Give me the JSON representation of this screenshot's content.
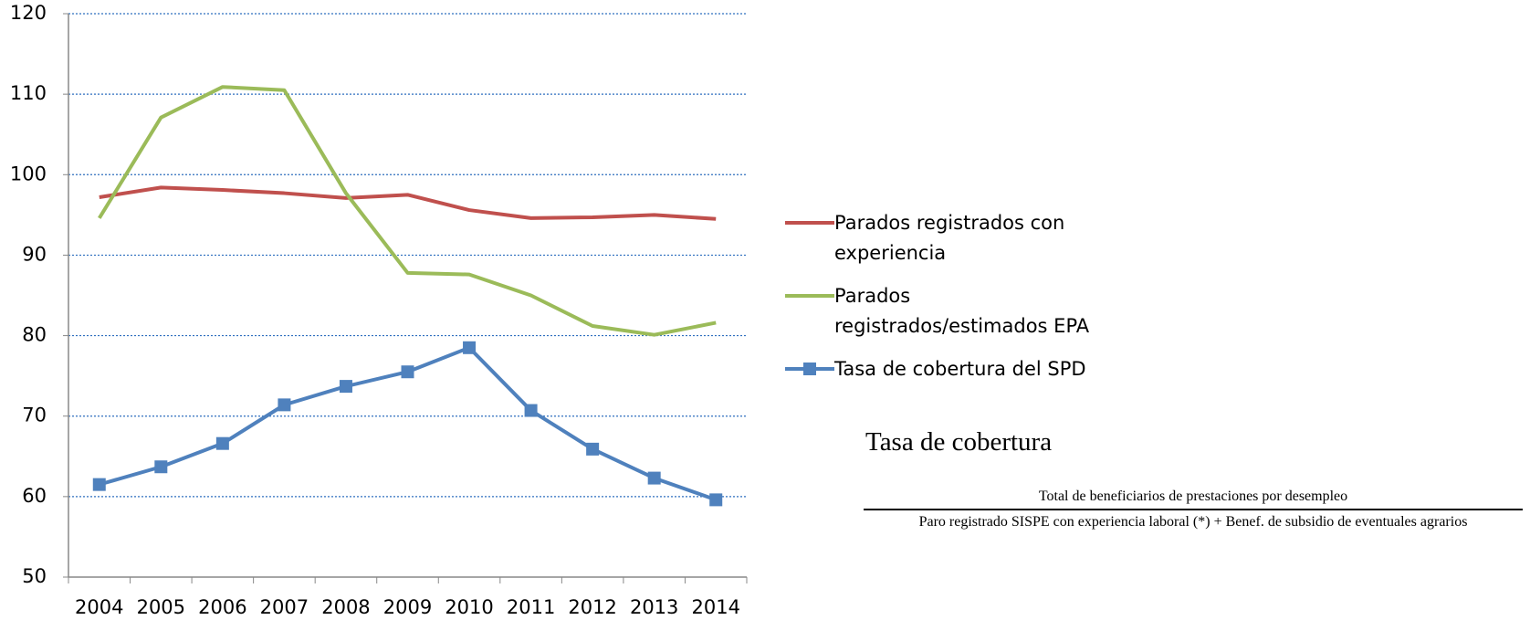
{
  "chart_data": {
    "type": "line",
    "categories": [
      "2004",
      "2005",
      "2006",
      "2007",
      "2008",
      "2009",
      "2010",
      "2011",
      "2012",
      "2013",
      "2014"
    ],
    "series": [
      {
        "name": "Parados registrados con experiencia",
        "color": "#c0504d",
        "marker": "none",
        "values": [
          97.2,
          98.4,
          98.1,
          97.7,
          97.1,
          97.5,
          95.6,
          94.6,
          94.7,
          95.0,
          94.5
        ]
      },
      {
        "name": "Parados registrados/estimados EPA",
        "color": "#9bbb59",
        "marker": "none",
        "values": [
          94.6,
          107.1,
          110.9,
          110.5,
          97.7,
          87.8,
          87.6,
          85.0,
          81.2,
          80.1,
          81.6
        ]
      },
      {
        "name": "Tasa de cobertura del SPD",
        "color": "#4f81bd",
        "marker": "square",
        "values": [
          61.5,
          63.7,
          66.6,
          71.4,
          73.7,
          75.5,
          78.5,
          70.7,
          65.9,
          62.3,
          59.6
        ]
      }
    ],
    "ylim": [
      50,
      120
    ],
    "yticks": [
      50,
      60,
      70,
      80,
      90,
      100,
      110,
      120
    ],
    "grid": true,
    "legend": "right",
    "formula": {
      "title": "Tasa de cobertura",
      "numerator": "Total de beneficiarios de prestaciones por desempleo",
      "denominator": "Paro registrado SISPE con experiencia laboral (*) + Benef. de subsidio de eventuales agrarios"
    }
  }
}
